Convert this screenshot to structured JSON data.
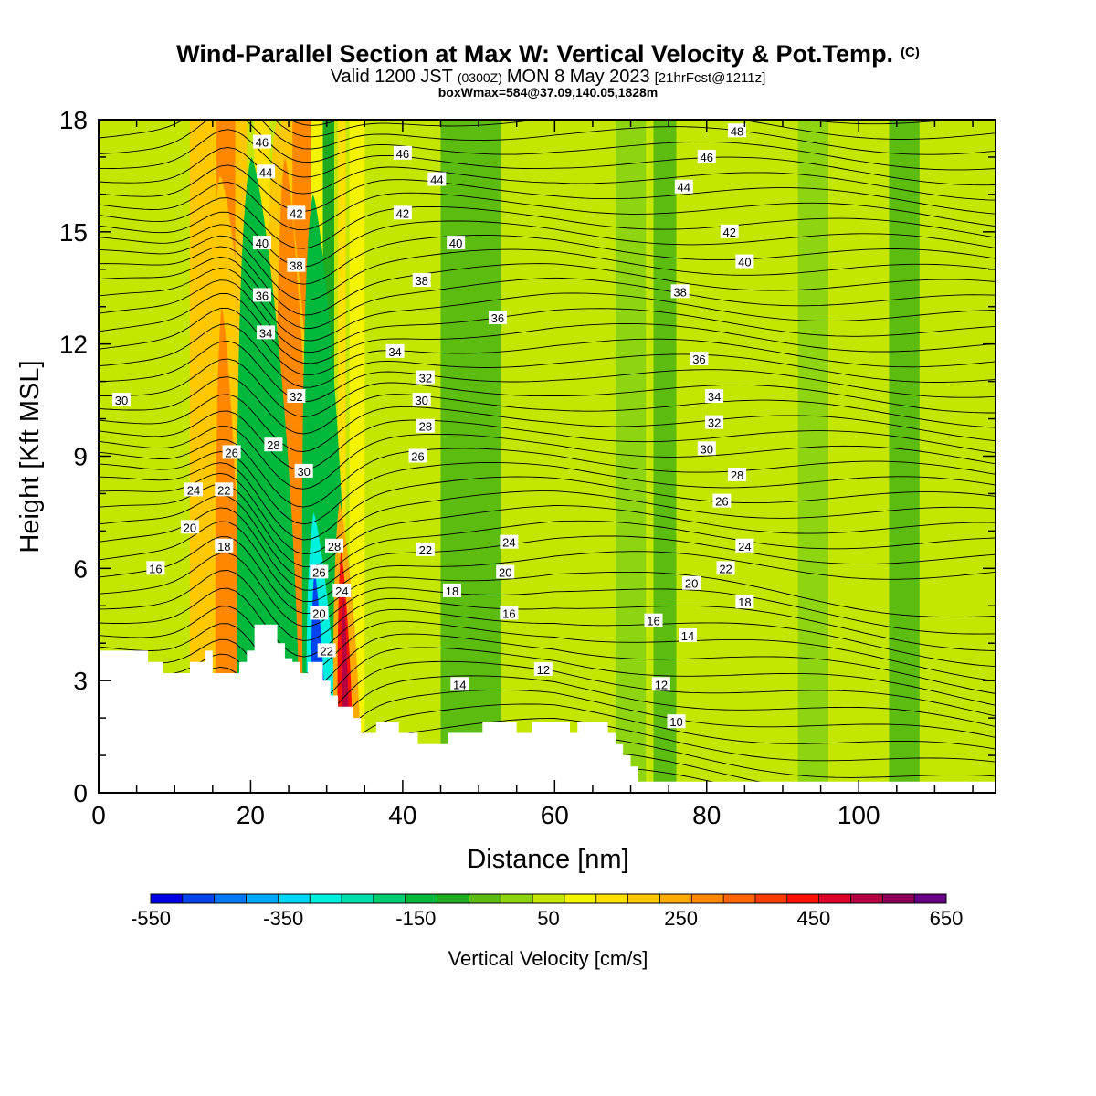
{
  "chart_data": {
    "type": "heatmap",
    "title": "Wind-Parallel Section at Max W: Vertical Velocity & Pot.Temp.",
    "title_mark": "(C)",
    "subtitle_parts": [
      "Valid 1200 JST",
      "(0300Z)",
      "MON 8 May 2023",
      "[21hrFcst@1211z]"
    ],
    "subtitle2": "boxWmax=584@37.09,140.05,1828m",
    "xlabel": "Distance [nm]",
    "ylabel": "Height [Kft MSL]",
    "xlim": [
      0,
      118
    ],
    "ylim": [
      0,
      18
    ],
    "x_ticks": [
      "0",
      "20",
      "40",
      "60",
      "80",
      "100"
    ],
    "y_ticks": [
      "0",
      "3",
      "6",
      "9",
      "12",
      "15",
      "18"
    ],
    "x_tick_values": [
      0,
      20,
      40,
      60,
      80,
      100
    ],
    "y_tick_values": [
      0,
      3,
      6,
      9,
      12,
      15,
      18
    ],
    "grid": false,
    "colorbar": {
      "label": "Vertical Velocity [cm/s]",
      "min": -550,
      "max": 650,
      "step": 50,
      "tick_labels": [
        "-550",
        "-350",
        "-150",
        "50",
        "250",
        "450",
        "650"
      ],
      "colors": [
        "#0000e6",
        "#0044ee",
        "#0077f5",
        "#00a8fa",
        "#00d6fa",
        "#00f0e0",
        "#00dcaa",
        "#00cc72",
        "#00b83c",
        "#20aa20",
        "#5cbc10",
        "#8ed410",
        "#c4e600",
        "#f4f400",
        "#ffe000",
        "#ffc800",
        "#ffaa00",
        "#ff8800",
        "#ff6400",
        "#ff3c00",
        "#ff1000",
        "#dc0028",
        "#b40040",
        "#8c0058",
        "#680088"
      ]
    },
    "background_field_value": 50,
    "terrain": [
      [
        0,
        3.8
      ],
      [
        6.5,
        3.8
      ],
      [
        6.5,
        3.5
      ],
      [
        8.5,
        3.5
      ],
      [
        8.5,
        3.2
      ],
      [
        12,
        3.2
      ],
      [
        12,
        3.5
      ],
      [
        14,
        3.5
      ],
      [
        14,
        3.8
      ],
      [
        15,
        3.8
      ],
      [
        15,
        3.2
      ],
      [
        18.5,
        3.2
      ],
      [
        18.5,
        3.5
      ],
      [
        19.5,
        3.5
      ],
      [
        19.5,
        3.8
      ],
      [
        20.5,
        3.8
      ],
      [
        20.5,
        4.5
      ],
      [
        23.5,
        4.5
      ],
      [
        23.5,
        4.0
      ],
      [
        24.5,
        4.0
      ],
      [
        24.5,
        3.6
      ],
      [
        25.5,
        3.6
      ],
      [
        25.5,
        3.5
      ],
      [
        26.5,
        3.5
      ],
      [
        26.5,
        3.2
      ],
      [
        27.5,
        3.2
      ],
      [
        27.5,
        3.5
      ],
      [
        29.5,
        3.5
      ],
      [
        29.5,
        3.0
      ],
      [
        30.5,
        3.0
      ],
      [
        30.5,
        2.6
      ],
      [
        31.5,
        2.6
      ],
      [
        31.5,
        2.3
      ],
      [
        33.5,
        2.3
      ],
      [
        33.5,
        2.0
      ],
      [
        34.5,
        2.0
      ],
      [
        34.5,
        1.6
      ],
      [
        36.5,
        1.6
      ],
      [
        36.5,
        1.9
      ],
      [
        39.5,
        1.9
      ],
      [
        39.5,
        1.6
      ],
      [
        42,
        1.6
      ],
      [
        42,
        1.3
      ],
      [
        46,
        1.3
      ],
      [
        46,
        1.6
      ],
      [
        50.5,
        1.6
      ],
      [
        50.5,
        1.9
      ],
      [
        55,
        1.9
      ],
      [
        55,
        1.6
      ],
      [
        57,
        1.6
      ],
      [
        57,
        1.9
      ],
      [
        62,
        1.9
      ],
      [
        62,
        1.6
      ],
      [
        63,
        1.6
      ],
      [
        63,
        1.9
      ],
      [
        67,
        1.9
      ],
      [
        67,
        1.6
      ],
      [
        68,
        1.6
      ],
      [
        68,
        1.3
      ],
      [
        69,
        1.3
      ],
      [
        69,
        1.0
      ],
      [
        70,
        1.0
      ],
      [
        70,
        0.7
      ],
      [
        71,
        0.7
      ],
      [
        71,
        0.3
      ],
      [
        118,
        0.3
      ]
    ],
    "w_columns": [
      {
        "x": [
          12,
          15.5
        ],
        "level": 225
      },
      {
        "x": [
          15.5,
          18
        ],
        "level": 325
      },
      {
        "x": [
          18,
          19.5
        ],
        "level": 225
      },
      {
        "x": [
          20.5,
          22.5
        ],
        "level": 175
      },
      {
        "x": [
          24,
          25.5
        ],
        "level": 225
      },
      {
        "x": [
          25.5,
          28
        ],
        "level": 325
      },
      {
        "x": [
          28,
          29.5
        ],
        "level": 125
      },
      {
        "x": [
          29.5,
          31
        ],
        "level": -75
      },
      {
        "x": [
          31.5,
          32.5
        ],
        "level": 175
      },
      {
        "x": [
          33,
          35
        ],
        "level": 125
      },
      {
        "x": [
          37,
          45
        ],
        "level": 75
      },
      {
        "x": [
          45,
          53
        ],
        "level": -25
      },
      {
        "x": [
          58,
          62
        ],
        "level": 75
      },
      {
        "x": [
          68,
          72
        ],
        "level": 25
      },
      {
        "x": [
          73,
          76
        ],
        "level": -25
      },
      {
        "x": [
          84,
          90
        ],
        "level": 75
      },
      {
        "x": [
          92,
          96
        ],
        "level": 25
      },
      {
        "x": [
          98,
          103
        ],
        "level": 75
      },
      {
        "x": [
          104,
          108
        ],
        "level": -25
      },
      {
        "x": [
          111,
          115
        ],
        "level": 75
      }
    ],
    "w_cores": [
      {
        "x": [
          14.5,
          22
        ],
        "y_top": 16.5,
        "level": 225
      },
      {
        "x": [
          15.5,
          19
        ],
        "y_top": 13,
        "level": 325
      },
      {
        "x": [
          22,
          29.5
        ],
        "y_top": 18,
        "level": 225
      },
      {
        "x": [
          23.5,
          28.5
        ],
        "y_top": 17,
        "level": 325
      },
      {
        "x": [
          18.5,
          26.5
        ],
        "y_top": 17,
        "level": -125
      },
      {
        "x": [
          27,
          33
        ],
        "y_top": 16,
        "level": -125
      },
      {
        "x": [
          27.5,
          31.5
        ],
        "y_top": 7.5,
        "level": -275
      },
      {
        "x": [
          28,
          30
        ],
        "y_top": 6,
        "level": -475
      },
      {
        "x": [
          31,
          34.5
        ],
        "y_top": 7.8,
        "level": 275
      },
      {
        "x": [
          31.5,
          33.5
        ],
        "y_top": 6.5,
        "level": 475
      },
      {
        "x": [
          32,
          33
        ],
        "y_top": 5.5,
        "level": 575
      }
    ],
    "theta_labels": [
      {
        "x": 3,
        "y": 10.5,
        "text": "30"
      },
      {
        "x": 7.5,
        "y": 6,
        "text": "16"
      },
      {
        "x": 12,
        "y": 7.1,
        "text": "20"
      },
      {
        "x": 12.5,
        "y": 8.1,
        "text": "24"
      },
      {
        "x": 16.5,
        "y": 8.1,
        "text": "22"
      },
      {
        "x": 16.5,
        "y": 6.6,
        "text": "18"
      },
      {
        "x": 17.5,
        "y": 9.1,
        "text": "26"
      },
      {
        "x": 21.5,
        "y": 17.4,
        "text": "46"
      },
      {
        "x": 22,
        "y": 16.6,
        "text": "44"
      },
      {
        "x": 21.5,
        "y": 14.7,
        "text": "40"
      },
      {
        "x": 21.5,
        "y": 13.3,
        "text": "36"
      },
      {
        "x": 22,
        "y": 12.3,
        "text": "34"
      },
      {
        "x": 26,
        "y": 15.5,
        "text": "42"
      },
      {
        "x": 26,
        "y": 14.1,
        "text": "38"
      },
      {
        "x": 26,
        "y": 10.6,
        "text": "32"
      },
      {
        "x": 23,
        "y": 9.3,
        "text": "28"
      },
      {
        "x": 27,
        "y": 8.6,
        "text": "30"
      },
      {
        "x": 31,
        "y": 6.6,
        "text": "28"
      },
      {
        "x": 29,
        "y": 5.9,
        "text": "26"
      },
      {
        "x": 32,
        "y": 5.4,
        "text": "24"
      },
      {
        "x": 29,
        "y": 4.8,
        "text": "20"
      },
      {
        "x": 30,
        "y": 3.8,
        "text": "22"
      },
      {
        "x": 40,
        "y": 17.1,
        "text": "46"
      },
      {
        "x": 44.5,
        "y": 16.4,
        "text": "44"
      },
      {
        "x": 40,
        "y": 15.5,
        "text": "42"
      },
      {
        "x": 47,
        "y": 14.7,
        "text": "40"
      },
      {
        "x": 42.5,
        "y": 13.7,
        "text": "38"
      },
      {
        "x": 52.5,
        "y": 12.7,
        "text": "36"
      },
      {
        "x": 39,
        "y": 11.8,
        "text": "34"
      },
      {
        "x": 43,
        "y": 11.1,
        "text": "32"
      },
      {
        "x": 42.5,
        "y": 10.5,
        "text": "30"
      },
      {
        "x": 43,
        "y": 9.8,
        "text": "28"
      },
      {
        "x": 42,
        "y": 9.0,
        "text": "26"
      },
      {
        "x": 43,
        "y": 6.5,
        "text": "22"
      },
      {
        "x": 46.5,
        "y": 5.4,
        "text": "18"
      },
      {
        "x": 47.5,
        "y": 2.9,
        "text": "14"
      },
      {
        "x": 54,
        "y": 6.7,
        "text": "24"
      },
      {
        "x": 53.5,
        "y": 5.9,
        "text": "20"
      },
      {
        "x": 54,
        "y": 4.8,
        "text": "16"
      },
      {
        "x": 58.5,
        "y": 3.3,
        "text": "12"
      },
      {
        "x": 84,
        "y": 17.7,
        "text": "48"
      },
      {
        "x": 80,
        "y": 17.0,
        "text": "46"
      },
      {
        "x": 77,
        "y": 16.2,
        "text": "44"
      },
      {
        "x": 83,
        "y": 15.0,
        "text": "42"
      },
      {
        "x": 85,
        "y": 14.2,
        "text": "40"
      },
      {
        "x": 76.5,
        "y": 13.4,
        "text": "38"
      },
      {
        "x": 79,
        "y": 11.6,
        "text": "36"
      },
      {
        "x": 81,
        "y": 10.6,
        "text": "34"
      },
      {
        "x": 81,
        "y": 9.9,
        "text": "32"
      },
      {
        "x": 80,
        "y": 9.2,
        "text": "30"
      },
      {
        "x": 84,
        "y": 8.5,
        "text": "28"
      },
      {
        "x": 82,
        "y": 7.8,
        "text": "26"
      },
      {
        "x": 85,
        "y": 6.6,
        "text": "24"
      },
      {
        "x": 82.5,
        "y": 6.0,
        "text": "22"
      },
      {
        "x": 78,
        "y": 5.6,
        "text": "20"
      },
      {
        "x": 85,
        "y": 5.1,
        "text": "18"
      },
      {
        "x": 73,
        "y": 4.6,
        "text": "16"
      },
      {
        "x": 77.5,
        "y": 4.2,
        "text": "14"
      },
      {
        "x": 74,
        "y": 2.9,
        "text": "12"
      },
      {
        "x": 76,
        "y": 1.9,
        "text": "10"
      }
    ]
  }
}
